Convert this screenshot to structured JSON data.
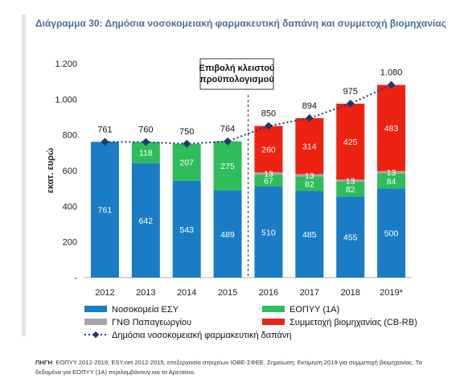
{
  "title": "Διάγραμμα 30: Δημόσια νοσοκομειακή φαρμακευτική δαπάνη και συμμετοχή βιομηχανίας",
  "annotation": [
    "Επιβολή κλειστού",
    "προϋπολογισμού"
  ],
  "source_label": "ΠΗΓΗ",
  "source_text": ": ΕΟΠΥΥ 2012-2019, ESY.net 2012-2015, επεξεργασία στοιχείων ΙΟΒΕ-ΣΦΕΕ. Σημείωση: Εκτίμηση 2019 για συμμετοχή βιομηχανίας. Τα δεδομένα για ΕΟΠΥΥ (1Α) περιλαμβάνουν και το Αρεταίειο.",
  "colors": {
    "esy": "#1a7cc4",
    "eopyy": "#2ebd5a",
    "gno": "#a6a6a6",
    "industry": "#ee2211",
    "total": "#1f3a6d"
  },
  "chart_data": {
    "type": "bar",
    "stacked": true,
    "ylabel": "εκατ. ευρώ",
    "ylim": [
      0,
      1200
    ],
    "yticks": [
      0,
      200,
      400,
      600,
      800,
      1000,
      1200
    ],
    "ytick_labels": [
      "-",
      "200",
      "400",
      "600",
      "800",
      "1.000",
      "1.200"
    ],
    "categories": [
      "2012",
      "2013",
      "2014",
      "2015",
      "2016",
      "2017",
      "2018",
      "2019*"
    ],
    "series": [
      {
        "name": "Νοσοκομεία ΕΣΥ",
        "key": "esy",
        "values": [
          761,
          642,
          543,
          489,
          510,
          485,
          455,
          500
        ],
        "labels": [
          "761",
          "642",
          "543",
          "489",
          "510",
          "485",
          "455",
          "500"
        ]
      },
      {
        "name": "ΕΟΠΥΥ (1Α)",
        "key": "eopyy",
        "values": [
          0,
          118,
          207,
          275,
          67,
          82,
          82,
          84
        ],
        "labels": [
          "",
          "118",
          "207",
          "275",
          "67",
          "82",
          "82",
          "84"
        ]
      },
      {
        "name": "ΓΝΘ Παπαγεωργίου",
        "key": "gno",
        "values": [
          0,
          0,
          0,
          0,
          13,
          13,
          13,
          13
        ],
        "labels": [
          "",
          "",
          "",
          "",
          "13",
          "13",
          "13",
          "13"
        ]
      },
      {
        "name": "Συμμετοχή βιομηχανίας (CB-RB)",
        "key": "industry",
        "values": [
          0,
          0,
          0,
          0,
          260,
          314,
          425,
          483
        ],
        "labels": [
          "",
          "",
          "",
          "",
          "260",
          "314",
          "425",
          "483"
        ]
      }
    ],
    "total": {
      "name": "Δημόσια νοσοκομειακή φαρμακευτική δαπάνη",
      "values": [
        761,
        760,
        750,
        764,
        850,
        894,
        975,
        1080
      ],
      "labels": [
        "761",
        "760",
        "750",
        "764",
        "850",
        "894",
        "975",
        "1.080"
      ]
    },
    "legend": [
      {
        "key": "esy",
        "label": "Νοσοκομεία ΕΣΥ"
      },
      {
        "key": "eopyy",
        "label": "ΕΟΠΥΥ (1Α)"
      },
      {
        "key": "gno",
        "label": "ΓΝΘ Παπαγεωργίου"
      },
      {
        "key": "industry",
        "label": "Συμμετοχή βιομηχανίας (CB-RB)"
      },
      {
        "key": "total",
        "label": "Δημόσια νοσοκομειακή φαρμακευτική δαπάνη"
      }
    ],
    "legend_position": "bottom"
  }
}
